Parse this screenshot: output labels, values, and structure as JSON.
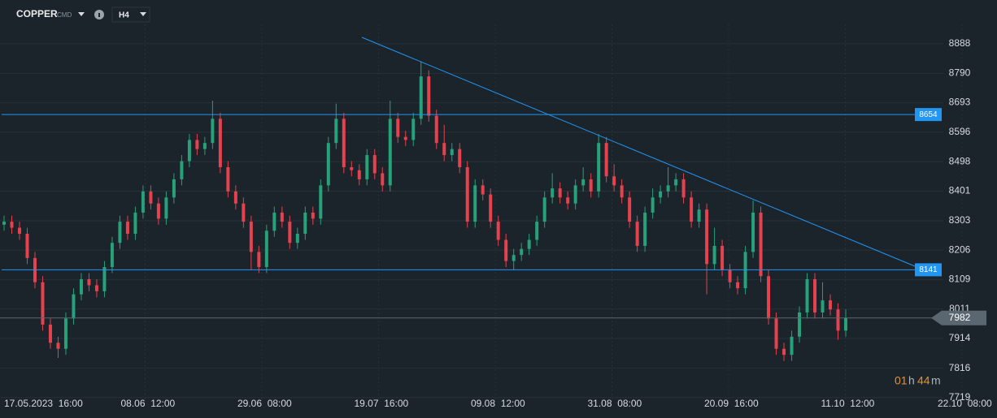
{
  "header": {
    "symbol": "COPPER",
    "market": "CMD",
    "interval": "H4"
  },
  "timer": {
    "hours": "01",
    "h": "h",
    "minutes": "44",
    "m": "m"
  },
  "chart_data": {
    "type": "candlestick",
    "colors": {
      "up": "#26a17a",
      "down": "#e5424d",
      "level": "#2196f3",
      "last": "#5b6770"
    },
    "ylim": [
      7713,
      8952
    ],
    "yticks": [
      7719,
      7816,
      7914,
      8011,
      8109,
      8206,
      8303,
      8401,
      8498,
      8596,
      8693,
      8790,
      8888
    ],
    "grid": true,
    "xticks": [
      "17.05.2023  16:00",
      "08.06  12:00",
      "29.06  08:00",
      "19.07  16:00",
      "09.08  12:00",
      "31.08  08:00",
      "20.09  16:00",
      "11.10  12:00",
      "22.10  08:00"
    ],
    "levels": [
      8654,
      8141
    ],
    "last_price": 7982,
    "open": [
      8290,
      8300,
      8280,
      8260,
      8180,
      8100,
      7960,
      7900,
      7880,
      7980,
      8060,
      8110,
      8090,
      8070,
      8150,
      8230,
      8300,
      8260,
      8330,
      8400,
      8360,
      8310,
      8380,
      8440,
      8500,
      8570,
      8540,
      8560,
      8640,
      8480,
      8400,
      8360,
      8300,
      8200,
      8150,
      8270,
      8330,
      8300,
      8230,
      8260,
      8330,
      8310,
      8420,
      8560,
      8640,
      8480,
      8470,
      8440,
      8520,
      8460,
      8420,
      8640,
      8580,
      8570,
      8640,
      8780,
      8650,
      8560,
      8520,
      8540,
      8480,
      8300,
      8420,
      8390,
      8300,
      8240,
      8170,
      8190,
      8210,
      8240,
      8300,
      8380,
      8410,
      8380,
      8360,
      8420,
      8440,
      8400,
      8560,
      8450,
      8420,
      8380,
      8300,
      8220,
      8330,
      8380,
      8400,
      8420,
      8440,
      8380,
      8300,
      8340,
      8160,
      8220,
      8140,
      8100,
      8080,
      8200,
      8330,
      8120,
      7980,
      7880,
      7860,
      7920,
      8000,
      8110,
      8000,
      8040,
      8010,
      7940
    ],
    "high": [
      8320,
      8320,
      8300,
      8280,
      8200,
      8120,
      7980,
      7920,
      8000,
      8080,
      8130,
      8130,
      8110,
      8170,
      8250,
      8320,
      8320,
      8350,
      8420,
      8420,
      8380,
      8400,
      8460,
      8520,
      8590,
      8590,
      8580,
      8700,
      8660,
      8500,
      8420,
      8380,
      8320,
      8220,
      8290,
      8350,
      8350,
      8320,
      8280,
      8350,
      8350,
      8440,
      8580,
      8690,
      8660,
      8500,
      8490,
      8540,
      8540,
      8480,
      8700,
      8660,
      8600,
      8660,
      8830,
      8800,
      8670,
      8620,
      8560,
      8560,
      8500,
      8440,
      8440,
      8410,
      8320,
      8260,
      8210,
      8230,
      8260,
      8320,
      8400,
      8460,
      8430,
      8400,
      8440,
      8480,
      8460,
      8590,
      8580,
      8490,
      8440,
      8400,
      8320,
      8350,
      8410,
      8420,
      8480,
      8460,
      8460,
      8400,
      8360,
      8360,
      8280,
      8240,
      8160,
      8120,
      8220,
      8370,
      8350,
      8140,
      8000,
      7900,
      7940,
      8020,
      8130,
      8130,
      8100,
      8060,
      8030,
      8010
    ],
    "low": [
      8270,
      8260,
      8240,
      8160,
      8080,
      7940,
      7880,
      7850,
      7860,
      7960,
      8040,
      8070,
      8050,
      8050,
      8130,
      8210,
      8240,
      8240,
      8310,
      8340,
      8290,
      8290,
      8360,
      8420,
      8480,
      8520,
      8520,
      8540,
      8460,
      8380,
      8340,
      8280,
      8140,
      8130,
      8130,
      8250,
      8280,
      8210,
      8210,
      8240,
      8290,
      8290,
      8400,
      8540,
      8460,
      8450,
      8420,
      8420,
      8440,
      8400,
      8400,
      8560,
      8550,
      8550,
      8620,
      8630,
      8540,
      8500,
      8500,
      8460,
      8280,
      8280,
      8370,
      8280,
      8220,
      8150,
      8140,
      8170,
      8190,
      8220,
      8280,
      8360,
      8360,
      8340,
      8340,
      8400,
      8380,
      8380,
      8430,
      8400,
      8360,
      8280,
      8200,
      8200,
      8310,
      8360,
      8380,
      8400,
      8360,
      8280,
      8280,
      8060,
      8140,
      8120,
      8080,
      8060,
      8060,
      8180,
      8100,
      7960,
      7860,
      7840,
      7840,
      7900,
      7980,
      7980,
      7980,
      7990,
      7910,
      7920
    ],
    "close": [
      8300,
      8280,
      8260,
      8180,
      8100,
      7960,
      7900,
      7880,
      7980,
      8060,
      8110,
      8090,
      8070,
      8150,
      8230,
      8300,
      8260,
      8330,
      8400,
      8360,
      8310,
      8380,
      8440,
      8500,
      8570,
      8540,
      8560,
      8640,
      8480,
      8400,
      8360,
      8300,
      8200,
      8150,
      8270,
      8330,
      8300,
      8230,
      8260,
      8330,
      8310,
      8420,
      8560,
      8640,
      8480,
      8470,
      8440,
      8520,
      8460,
      8420,
      8640,
      8580,
      8570,
      8640,
      8780,
      8650,
      8560,
      8520,
      8540,
      8480,
      8300,
      8420,
      8390,
      8300,
      8240,
      8170,
      8190,
      8210,
      8240,
      8300,
      8380,
      8410,
      8380,
      8360,
      8420,
      8440,
      8400,
      8560,
      8450,
      8420,
      8380,
      8300,
      8220,
      8330,
      8380,
      8400,
      8420,
      8440,
      8380,
      8300,
      8340,
      8160,
      8220,
      8140,
      8100,
      8080,
      8200,
      8330,
      8120,
      7980,
      7880,
      7860,
      7920,
      8000,
      8110,
      8000,
      8040,
      8010,
      7940,
      7982
    ]
  }
}
